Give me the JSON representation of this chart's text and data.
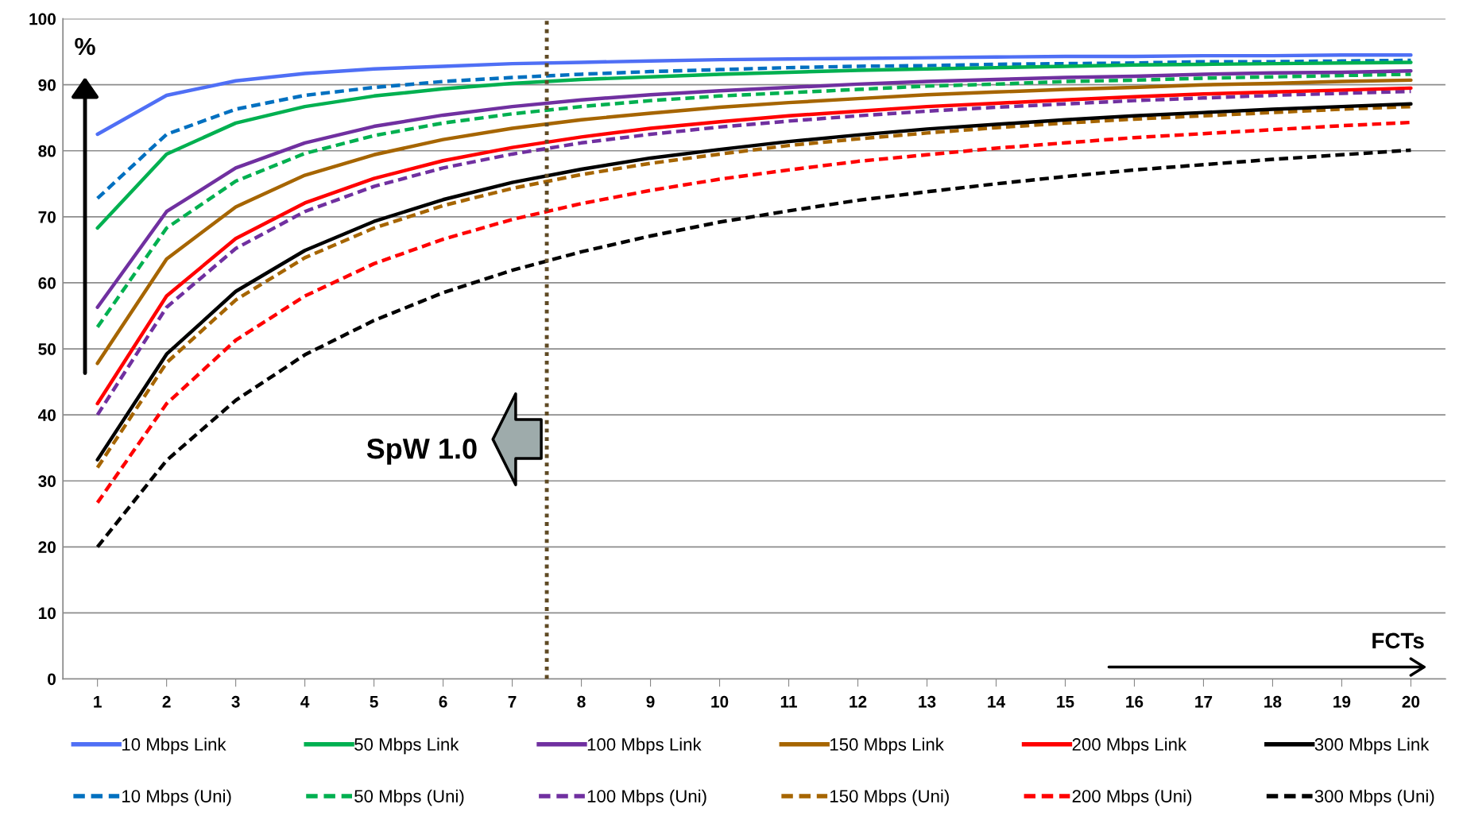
{
  "chart_data": {
    "type": "line",
    "x": [
      1,
      2,
      3,
      4,
      5,
      6,
      7,
      8,
      9,
      10,
      11,
      12,
      13,
      14,
      15,
      16,
      17,
      18,
      19,
      20
    ],
    "xlim": [
      0.5,
      20.5
    ],
    "xticks": [
      1,
      2,
      3,
      4,
      5,
      6,
      7,
      8,
      9,
      10,
      11,
      12,
      13,
      14,
      15,
      16,
      17,
      18,
      19,
      20
    ],
    "ylim": [
      0,
      100
    ],
    "yticks": [
      0,
      10,
      20,
      30,
      40,
      50,
      60,
      70,
      80,
      90,
      100
    ],
    "grid": "y",
    "legend": "bottom",
    "marker": "none",
    "annotations": [
      "%",
      "FCTs",
      "SpW 1.0"
    ],
    "ref_lines": [
      {
        "axis": "x",
        "value": 7.5,
        "label": null,
        "color": "#5f4a24",
        "line_style": "dotted"
      }
    ],
    "series": [
      {
        "name": "10 Mbps Link",
        "color": "#4f6ff5",
        "line_style": "solid",
        "values": [
          82.5,
          88.4,
          90.6,
          91.7,
          92.4,
          92.8,
          93.2,
          93.4,
          93.6,
          93.8,
          93.9,
          94.0,
          94.1,
          94.2,
          94.3,
          94.3,
          94.4,
          94.4,
          94.5,
          94.5
        ]
      },
      {
        "name": "10 Mbps (Uni)",
        "color": "#0070c0",
        "line_style": "dashed",
        "values": [
          72.8,
          82.5,
          86.3,
          88.4,
          89.6,
          90.5,
          91.1,
          91.6,
          92.0,
          92.3,
          92.6,
          92.8,
          92.9,
          93.1,
          93.2,
          93.3,
          93.5,
          93.5,
          93.6,
          93.7
        ]
      },
      {
        "name": "50 Mbps Link",
        "color": "#00b050",
        "line_style": "solid",
        "values": [
          68.3,
          79.5,
          84.2,
          86.7,
          88.3,
          89.4,
          90.2,
          90.8,
          91.2,
          91.6,
          91.9,
          92.2,
          92.4,
          92.6,
          92.8,
          93.0,
          93.1,
          93.2,
          93.3,
          93.4
        ]
      },
      {
        "name": "50 Mbps (Uni)",
        "color": "#00b050",
        "line_style": "dashed",
        "values": [
          53.3,
          68.3,
          75.4,
          79.6,
          82.3,
          84.2,
          85.6,
          86.7,
          87.6,
          88.3,
          88.8,
          89.3,
          89.8,
          90.1,
          90.5,
          90.7,
          91.0,
          91.2,
          91.4,
          91.6
        ]
      },
      {
        "name": "100 Mbps Link",
        "color": "#7030a0",
        "line_style": "solid",
        "values": [
          56.3,
          70.8,
          77.4,
          81.2,
          83.7,
          85.4,
          86.7,
          87.7,
          88.5,
          89.1,
          89.6,
          90.1,
          90.5,
          90.8,
          91.1,
          91.3,
          91.6,
          91.8,
          91.9,
          92.1
        ]
      },
      {
        "name": "100 Mbps (Uni)",
        "color": "#7030a0",
        "line_style": "dashed",
        "values": [
          40.0,
          56.3,
          65.2,
          70.8,
          74.6,
          77.4,
          79.5,
          81.2,
          82.5,
          83.6,
          84.5,
          85.3,
          86.0,
          86.6,
          87.1,
          87.6,
          88.0,
          88.4,
          88.7,
          89.0
        ]
      },
      {
        "name": "150 Mbps Link",
        "color": "#a66500",
        "line_style": "solid",
        "values": [
          47.8,
          63.6,
          71.5,
          76.3,
          79.4,
          81.7,
          83.4,
          84.7,
          85.7,
          86.6,
          87.3,
          87.9,
          88.5,
          88.9,
          89.3,
          89.6,
          90.0,
          90.2,
          90.5,
          90.7
        ]
      },
      {
        "name": "150 Mbps (Uni)",
        "color": "#a66500",
        "line_style": "dashed",
        "values": [
          32.0,
          47.9,
          57.4,
          63.8,
          68.3,
          71.7,
          74.3,
          76.4,
          78.1,
          79.5,
          80.8,
          81.8,
          82.7,
          83.5,
          84.2,
          84.8,
          85.3,
          85.8,
          86.3,
          86.7
        ]
      },
      {
        "name": "200 Mbps Link",
        "color": "#ff0000",
        "line_style": "solid",
        "values": [
          41.7,
          58.0,
          66.7,
          72.1,
          75.8,
          78.5,
          80.5,
          82.1,
          83.4,
          84.4,
          85.3,
          86.0,
          86.7,
          87.2,
          87.7,
          88.2,
          88.6,
          88.9,
          89.2,
          89.5
        ]
      },
      {
        "name": "200 Mbps (Uni)",
        "color": "#ff0000",
        "line_style": "dashed",
        "values": [
          26.7,
          41.7,
          51.3,
          58.0,
          62.9,
          66.6,
          69.6,
          72.0,
          74.0,
          75.7,
          77.1,
          78.4,
          79.4,
          80.4,
          81.2,
          82.0,
          82.6,
          83.2,
          83.8,
          84.3
        ]
      },
      {
        "name": "300 Mbps Link",
        "color": "#000000",
        "line_style": "solid",
        "values": [
          33.2,
          49.2,
          58.7,
          64.9,
          69.3,
          72.6,
          75.2,
          77.2,
          78.9,
          80.2,
          81.4,
          82.4,
          83.3,
          84.0,
          84.7,
          85.3,
          85.8,
          86.3,
          86.7,
          87.1
        ]
      },
      {
        "name": "300 Mbps (Uni)",
        "color": "#000000",
        "line_style": "dashed",
        "values": [
          20.0,
          33.1,
          42.2,
          49.1,
          54.3,
          58.5,
          61.9,
          64.7,
          67.1,
          69.2,
          70.9,
          72.5,
          73.8,
          75.0,
          76.1,
          77.1,
          77.9,
          78.7,
          79.4,
          80.1
        ]
      }
    ]
  }
}
